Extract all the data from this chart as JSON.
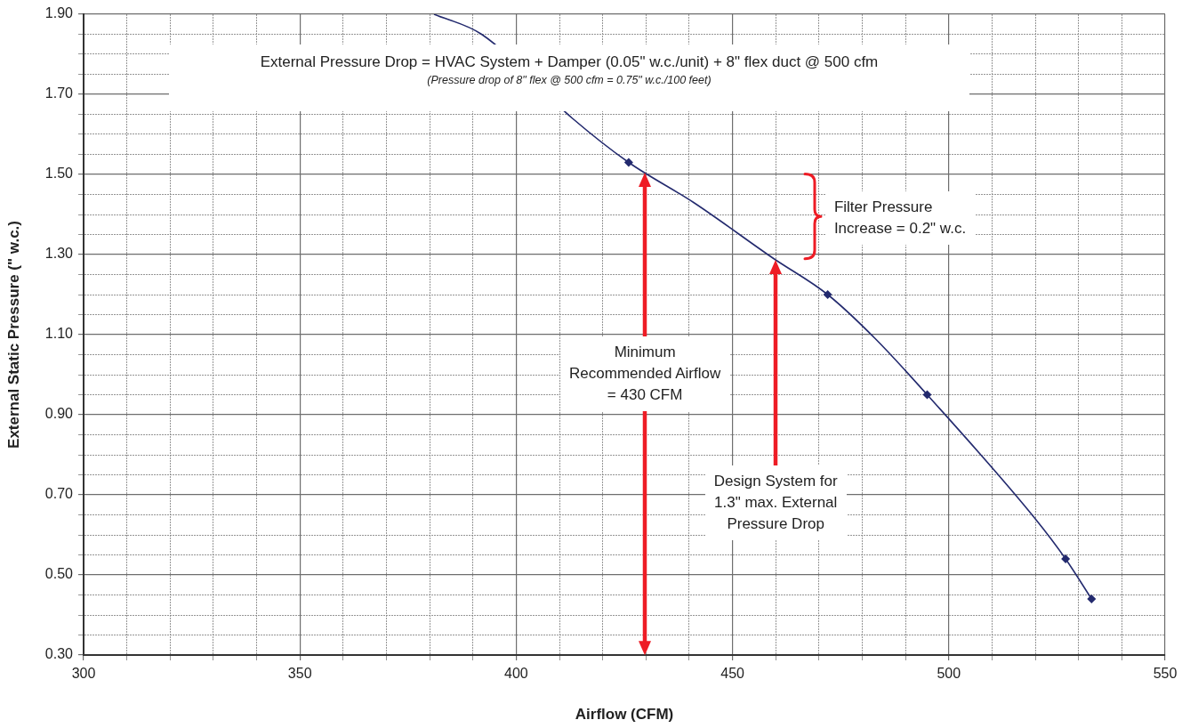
{
  "chart_data": {
    "type": "line",
    "xlabel": "Airflow (CFM)",
    "ylabel": "External Static Pressure (\" w.c.)",
    "xlim": [
      300,
      550
    ],
    "xticks": [
      300,
      {
        "value": 310,
        "label": null
      },
      {
        "value": 320,
        "label": null
      },
      {
        "value": 330,
        "label": null
      },
      {
        "value": 340,
        "label": null
      },
      350,
      {
        "value": 360,
        "label": null
      },
      {
        "value": 370,
        "label": null
      },
      {
        "value": 380,
        "label": null
      },
      {
        "value": 390,
        "label": null
      },
      400,
      {
        "value": 410,
        "label": null
      },
      {
        "value": 420,
        "label": null
      },
      {
        "value": 430,
        "label": null
      },
      {
        "value": 440,
        "label": null
      },
      450,
      {
        "value": 460,
        "label": null
      },
      {
        "value": 470,
        "label": null
      },
      {
        "value": 480,
        "label": null
      },
      {
        "value": 490,
        "label": null
      },
      500,
      {
        "value": 510,
        "label": null
      },
      {
        "value": 520,
        "label": null
      },
      {
        "value": 530,
        "label": null
      },
      {
        "value": 540,
        "label": null
      },
      550
    ],
    "ylim": [
      0.3,
      1.9
    ],
    "yticks": [
      {
        "value": 0.3,
        "label": "0.30"
      },
      {
        "value": 0.35,
        "label": null
      },
      {
        "value": 0.4,
        "label": null
      },
      {
        "value": 0.45,
        "label": null
      },
      {
        "value": 0.5,
        "label": "0.50"
      },
      {
        "value": 0.55,
        "label": null
      },
      {
        "value": 0.6,
        "label": null
      },
      {
        "value": 0.65,
        "label": null
      },
      {
        "value": 0.7,
        "label": "0.70"
      },
      {
        "value": 0.75,
        "label": null
      },
      {
        "value": 0.8,
        "label": null
      },
      {
        "value": 0.85,
        "label": null
      },
      {
        "value": 0.9,
        "label": "0.90"
      },
      {
        "value": 0.95,
        "label": null
      },
      {
        "value": 1.0,
        "label": null
      },
      {
        "value": 1.05,
        "label": null
      },
      {
        "value": 1.1,
        "label": "1.10"
      },
      {
        "value": 1.15,
        "label": null
      },
      {
        "value": 1.2,
        "label": null
      },
      {
        "value": 1.25,
        "label": null
      },
      {
        "value": 1.3,
        "label": "1.30"
      },
      {
        "value": 1.35,
        "label": null
      },
      {
        "value": 1.4,
        "label": null
      },
      {
        "value": 1.45,
        "label": null
      },
      {
        "value": 1.5,
        "label": "1.50"
      },
      {
        "value": 1.55,
        "label": null
      },
      {
        "value": 1.6,
        "label": null
      },
      {
        "value": 1.65,
        "label": null
      },
      {
        "value": 1.7,
        "label": "1.70"
      },
      {
        "value": 1.75,
        "label": null
      },
      {
        "value": 1.8,
        "label": null
      },
      {
        "value": 1.85,
        "label": null
      },
      {
        "value": 1.9,
        "label": "1.90"
      }
    ],
    "grid": true,
    "series": [
      {
        "marker": "none",
        "color": "#232a6e",
        "x": [
          381,
          392,
          413,
          426,
          441,
          459.5,
          472,
          483,
          495,
          520,
          527,
          533
        ],
        "values": [
          1.9,
          1.85,
          1.64,
          1.53,
          1.43,
          1.29,
          1.2,
          1.09,
          0.95,
          0.64,
          0.54,
          0.44
        ]
      },
      {
        "type": "scatter",
        "marker": "diamond",
        "color": "#232a6e",
        "x": [
          426,
          472,
          495,
          527,
          533
        ],
        "values": [
          1.53,
          1.2,
          0.95,
          0.54,
          0.44
        ]
      }
    ],
    "annotations": [
      "External Pressure Drop = HVAC System + Damper (0.05\" w.c./unit) + 8\" flex duct @ 500 cfm",
      "(Pressure drop of 8\" flex @ 500 cfm = 0.75\" w.c./100 feet)",
      "Minimum\nRecommended Airflow\n= 430 CFM",
      "Design System for\n1.3\" max. External\nPressure Drop",
      "Filter Pressure\nIncrease = 0.2\" w.c."
    ]
  }
}
